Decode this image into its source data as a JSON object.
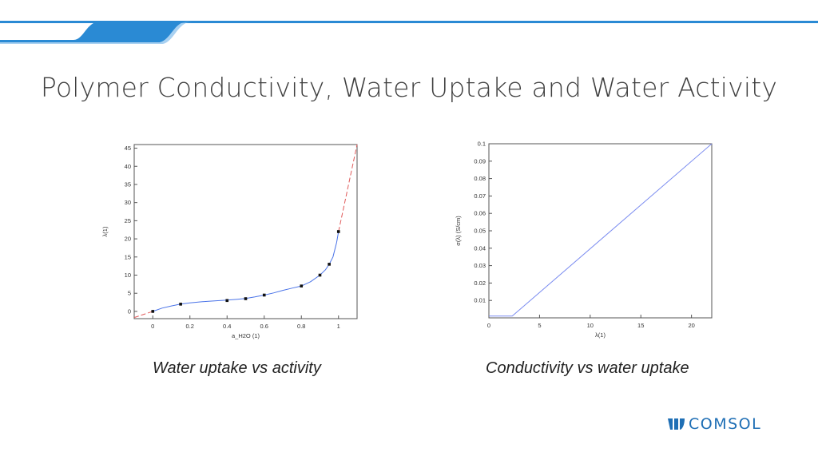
{
  "slide": {
    "title": "Polymer Conductivity, Water Uptake and Water Activity",
    "captions": [
      "Water uptake vs activity",
      "Conductivity vs water uptake"
    ],
    "logo_text": "COMSOL",
    "colors": {
      "banner": "#2a8ad4",
      "logo": "#1f6fb5"
    }
  },
  "chart_data": [
    {
      "type": "line",
      "title": "",
      "xlabel": "a_H2O (1)",
      "ylabel": "λ(1)",
      "xlim": [
        -0.1,
        1.1
      ],
      "ylim": [
        -2,
        46
      ],
      "xticks": [
        0,
        0.2,
        0.4,
        0.6,
        0.8,
        1
      ],
      "yticks": [
        0,
        5,
        10,
        15,
        20,
        25,
        30,
        35,
        40,
        45
      ],
      "grid": false,
      "points": {
        "x": [
          0,
          0.15,
          0.4,
          0.5,
          0.6,
          0.8,
          0.9,
          0.95,
          1.0
        ],
        "y": [
          0,
          2,
          3,
          3.5,
          4.5,
          7,
          10,
          13,
          22
        ]
      },
      "series": [
        {
          "style": "solid",
          "color": "#4a73e8",
          "x": [
            0,
            0.05,
            0.1,
            0.15,
            0.2,
            0.25,
            0.3,
            0.35,
            0.4,
            0.45,
            0.5,
            0.55,
            0.6,
            0.65,
            0.7,
            0.75,
            0.8,
            0.85,
            0.9,
            0.93,
            0.95,
            0.97,
            0.99,
            1.0
          ],
          "y": [
            0,
            0.9,
            1.5,
            2.0,
            2.35,
            2.6,
            2.8,
            2.95,
            3.1,
            3.3,
            3.55,
            4.0,
            4.5,
            5.1,
            5.8,
            6.4,
            7.0,
            8.2,
            10.0,
            11.5,
            13.0,
            15.0,
            19.0,
            22.0
          ]
        },
        {
          "style": "dashed",
          "color": "#e05a5a",
          "x": [
            -0.1,
            0.0
          ],
          "y": [
            -1.7,
            0
          ]
        },
        {
          "style": "dashed",
          "color": "#e05a5a",
          "x": [
            1.0,
            1.1
          ],
          "y": [
            22,
            46
          ]
        }
      ]
    },
    {
      "type": "line",
      "title": "",
      "xlabel": "λ(1)",
      "ylabel": "σ(λ) (S/cm)",
      "xlim": [
        0,
        22
      ],
      "ylim": [
        0,
        0.1
      ],
      "xticks": [
        0,
        5,
        10,
        15,
        20
      ],
      "yticks": [
        0.01,
        0.02,
        0.03,
        0.04,
        0.05,
        0.06,
        0.07,
        0.08,
        0.09,
        0.1
      ],
      "grid": false,
      "series": [
        {
          "style": "solid",
          "color": "#7b8cf0",
          "x": [
            0,
            2.3,
            22
          ],
          "y": [
            0.001,
            0.001,
            0.1
          ]
        }
      ]
    }
  ]
}
